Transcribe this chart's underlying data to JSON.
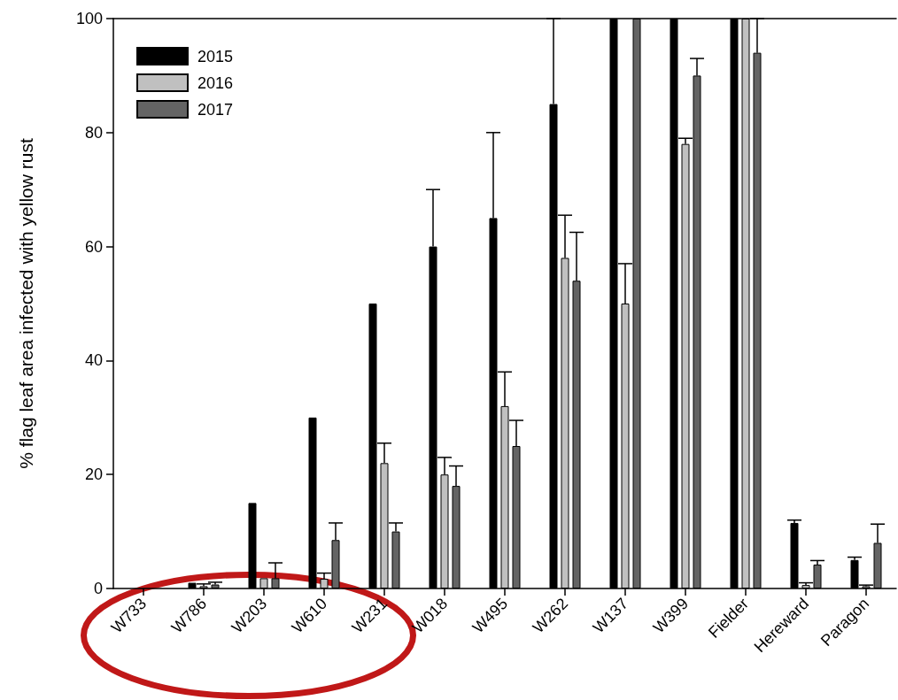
{
  "chart_data": {
    "type": "bar",
    "ylabel": "% flag leaf area infected with yellow rust",
    "categories": [
      "W733",
      "W786",
      "W203",
      "W610",
      "W231",
      "W018",
      "W495",
      "W262",
      "W137",
      "W399",
      "Fielder",
      "Hereward",
      "Paragon"
    ],
    "ylim": [
      0,
      100
    ],
    "yticks": [
      0,
      20,
      40,
      60,
      80,
      100
    ],
    "legend": "top left",
    "series": [
      {
        "name": "2015",
        "color": "#000000",
        "values": [
          0,
          1,
          15,
          30,
          50,
          60,
          65,
          85,
          100,
          100,
          100,
          11.5,
          5
        ],
        "errors": [
          null,
          null,
          null,
          null,
          null,
          [
            60,
            70
          ],
          [
            65,
            80
          ],
          [
            85,
            100
          ],
          null,
          null,
          null,
          [
            11.5,
            12
          ],
          [
            5,
            5.5
          ]
        ]
      },
      {
        "name": "2016",
        "color": "#c0c0c0",
        "values": [
          0,
          0.4,
          1.8,
          1.7,
          22,
          20,
          32,
          58,
          50,
          78,
          100,
          0.6,
          0.4
        ],
        "errors": [
          null,
          [
            0.4,
            0.8
          ],
          null,
          [
            1.7,
            2.7
          ],
          [
            22,
            25.5
          ],
          [
            20,
            23
          ],
          [
            32,
            38
          ],
          [
            58,
            65.5
          ],
          [
            50,
            57
          ],
          [
            78,
            79
          ],
          null,
          [
            0.6,
            1
          ],
          [
            0.4,
            0.6
          ]
        ]
      },
      {
        "name": "2017",
        "color": "#646464",
        "values": [
          0,
          0.7,
          1.8,
          8.5,
          10,
          18,
          25,
          54,
          100,
          90,
          94,
          4.2,
          8
        ],
        "errors": [
          null,
          [
            0.7,
            1.1
          ],
          [
            1.8,
            4.5
          ],
          [
            8.5,
            11.5
          ],
          [
            10,
            11.5
          ],
          [
            18,
            21.5
          ],
          [
            25,
            29.5
          ],
          [
            54,
            62.5
          ],
          null,
          [
            90,
            93
          ],
          [
            94,
            100
          ],
          [
            4.2,
            4.9
          ],
          [
            8,
            11.3
          ]
        ]
      }
    ]
  }
}
